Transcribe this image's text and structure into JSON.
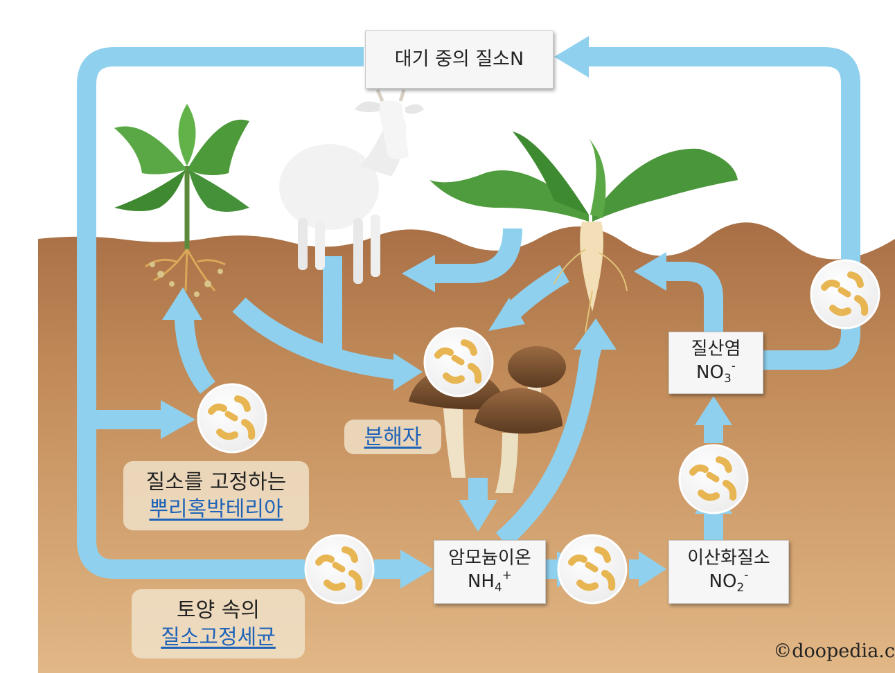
{
  "nodes": {
    "atmosphere": {
      "label": "대기 중의 질소N"
    },
    "nitrate": {
      "name": "질산염",
      "formula": "NO",
      "sub": "3",
      "sup": "-"
    },
    "ammonium": {
      "name": "암모늄이온",
      "formula": "NH",
      "sub": "4",
      "sup": "+"
    },
    "nitrite": {
      "name": "이산화질소",
      "formula": "NO",
      "sub": "2",
      "sup": "-"
    }
  },
  "labels": {
    "decomposer": "분해자",
    "root_bacteria": {
      "line1": "질소를 고정하는",
      "line2": "뿌리혹박테리아"
    },
    "soil_bacteria": {
      "line1": "토양 속의",
      "line2": "질소고정세균"
    }
  },
  "credit": "©doopedia.c",
  "colors": {
    "arrow": "#8fd0ee",
    "soil": "#c9955f",
    "soil_top": "#b3774a",
    "plant_leaf": "#4d9a3b",
    "mushroom_cap": "#8a5a35"
  }
}
